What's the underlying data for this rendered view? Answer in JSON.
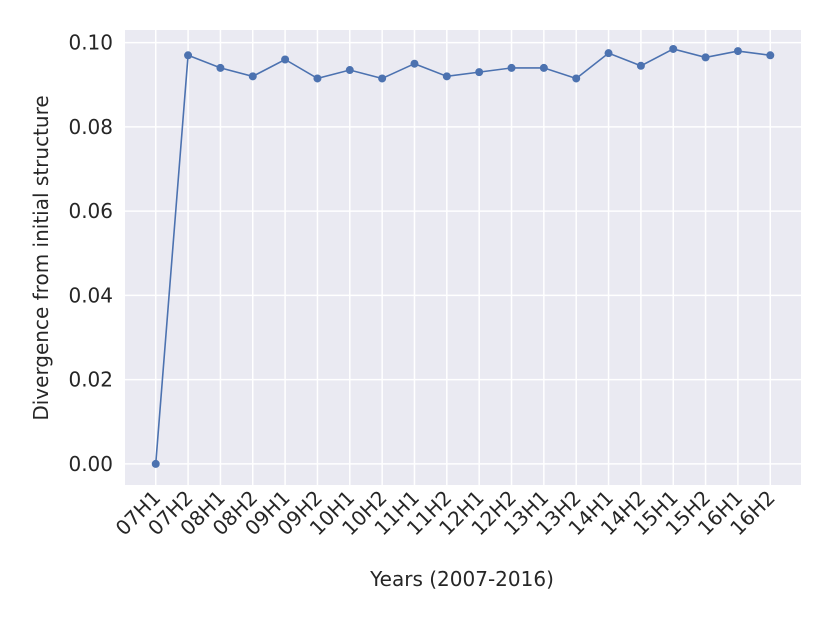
{
  "chart_data": {
    "type": "line",
    "x_label": "Years (2007-2016)",
    "y_label": "Divergence from initial structure",
    "categories": [
      "07H1",
      "07H2",
      "08H1",
      "08H2",
      "09H1",
      "09H2",
      "10H1",
      "10H2",
      "11H1",
      "11H2",
      "12H1",
      "12H2",
      "13H1",
      "13H2",
      "14H1",
      "14H2",
      "15H1",
      "15H2",
      "16H1",
      "16H2"
    ],
    "series": [
      {
        "color": "#4c72b0",
        "values": [
          0,
          0.097,
          0.094,
          0.092,
          0.096,
          0.0915,
          0.0935,
          0.0915,
          0.095,
          0.092,
          0.093,
          0.094,
          0.094,
          0.0915,
          0.0975,
          0.0945,
          0.0985,
          0.0965,
          0.098,
          0.097
        ]
      }
    ],
    "ylim": [
      -0.005,
      0.103
    ],
    "yticks": [
      {
        "value": 0,
        "label": "0.00"
      },
      {
        "value": 0.02,
        "label": "0.02"
      },
      {
        "value": 0.04,
        "label": "0.04"
      },
      {
        "value": 0.06,
        "label": "0.06"
      },
      {
        "value": 0.08,
        "label": "0.08"
      },
      {
        "value": 0.1,
        "label": "0.10"
      }
    ],
    "grid": true,
    "background": "#eaeaf2"
  }
}
